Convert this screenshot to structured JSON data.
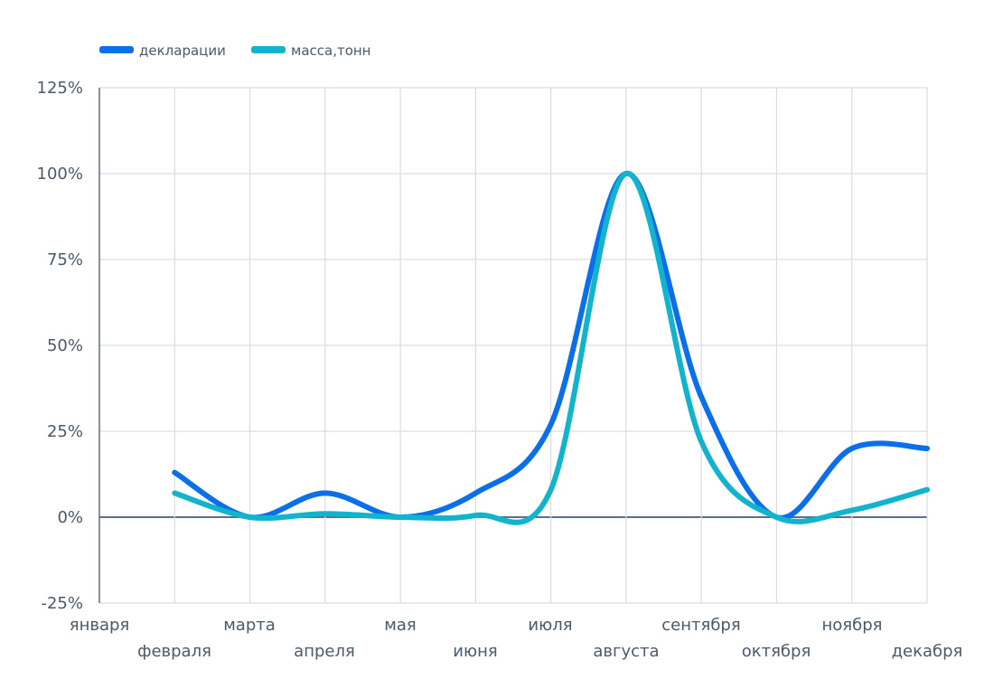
{
  "chart_data": {
    "type": "line",
    "title": "",
    "xlabel": "",
    "ylabel": "",
    "ylim": [
      -25,
      125
    ],
    "yticks": [
      -25,
      0,
      25,
      50,
      75,
      100,
      125
    ],
    "ytick_labels": [
      "-25%",
      "0%",
      "25%",
      "50%",
      "75%",
      "100%",
      "125%"
    ],
    "grid": true,
    "legend_position": "top-left",
    "categories": [
      "января",
      "февраля",
      "марта",
      "апреля",
      "мая",
      "июня",
      "июля",
      "августа",
      "сентября",
      "октября",
      "ноября",
      "декабря"
    ],
    "series": [
      {
        "name": "декларации",
        "color": "#0a6fe8",
        "values": [
          null,
          13,
          0,
          7,
          0,
          7,
          27,
          100,
          35,
          0,
          20,
          20
        ]
      },
      {
        "name": "масса,тонн",
        "color": "#12b3cc",
        "values": [
          null,
          7,
          0,
          1,
          0,
          0.5,
          8,
          100,
          22,
          0,
          2,
          8
        ]
      }
    ]
  }
}
